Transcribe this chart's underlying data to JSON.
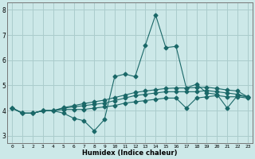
{
  "xlabel": "Humidex (Indice chaleur)",
  "bg_color": "#cce8e8",
  "grid_color": "#aacccc",
  "line_color": "#1a6868",
  "xlim": [
    -0.5,
    23.5
  ],
  "ylim": [
    2.7,
    8.3
  ],
  "xticks": [
    0,
    1,
    2,
    3,
    4,
    5,
    6,
    7,
    8,
    9,
    10,
    11,
    12,
    13,
    14,
    15,
    16,
    17,
    18,
    19,
    20,
    21,
    22,
    23
  ],
  "yticks": [
    3,
    4,
    5,
    6,
    7,
    8
  ],
  "line1": [
    4.1,
    3.9,
    3.9,
    4.0,
    4.0,
    3.9,
    3.7,
    3.6,
    3.2,
    3.65,
    5.35,
    5.45,
    5.35,
    6.6,
    7.8,
    6.5,
    6.55,
    4.9,
    5.05,
    4.7,
    4.65,
    4.1,
    4.6,
    4.55
  ],
  "line2": [
    4.1,
    3.9,
    3.9,
    4.0,
    4.0,
    4.05,
    4.05,
    4.05,
    4.1,
    4.15,
    4.2,
    4.3,
    4.35,
    4.4,
    4.45,
    4.5,
    4.5,
    4.1,
    4.5,
    4.55,
    4.6,
    4.55,
    4.55,
    4.5
  ],
  "line3": [
    4.1,
    3.9,
    3.9,
    4.0,
    4.0,
    4.1,
    4.15,
    4.2,
    4.25,
    4.3,
    4.4,
    4.5,
    4.6,
    4.65,
    4.7,
    4.75,
    4.75,
    4.75,
    4.75,
    4.8,
    4.75,
    4.7,
    4.65,
    4.55
  ],
  "line4": [
    4.1,
    3.9,
    3.9,
    4.0,
    4.0,
    4.12,
    4.2,
    4.28,
    4.35,
    4.42,
    4.52,
    4.62,
    4.72,
    4.78,
    4.83,
    4.88,
    4.9,
    4.9,
    4.92,
    4.93,
    4.88,
    4.82,
    4.78,
    4.55
  ]
}
